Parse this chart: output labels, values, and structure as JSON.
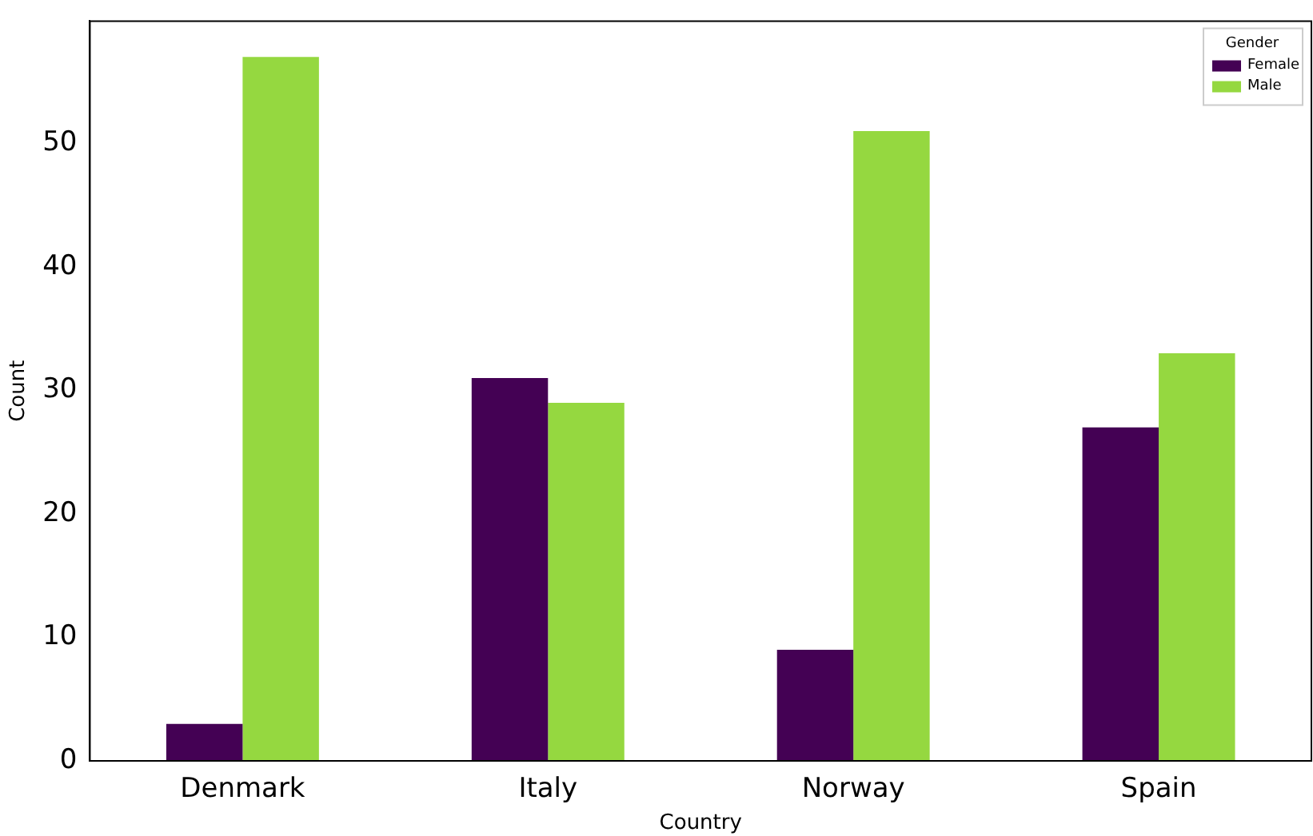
{
  "chart_data": {
    "type": "bar",
    "xlabel": "Country",
    "ylabel": "Count",
    "legend_title": "Gender",
    "categories": [
      "Denmark",
      "Italy",
      "Norway",
      "Spain"
    ],
    "series": [
      {
        "name": "Female",
        "color": "#440154",
        "values": [
          3,
          31,
          9,
          27
        ]
      },
      {
        "name": "Male",
        "color": "#95d840",
        "values": [
          57,
          29,
          51,
          33
        ]
      }
    ],
    "ylim": [
      0,
      59.9
    ],
    "yticks": [
      0,
      10,
      20,
      30,
      40,
      50
    ],
    "grid": false,
    "legend": "top right"
  }
}
